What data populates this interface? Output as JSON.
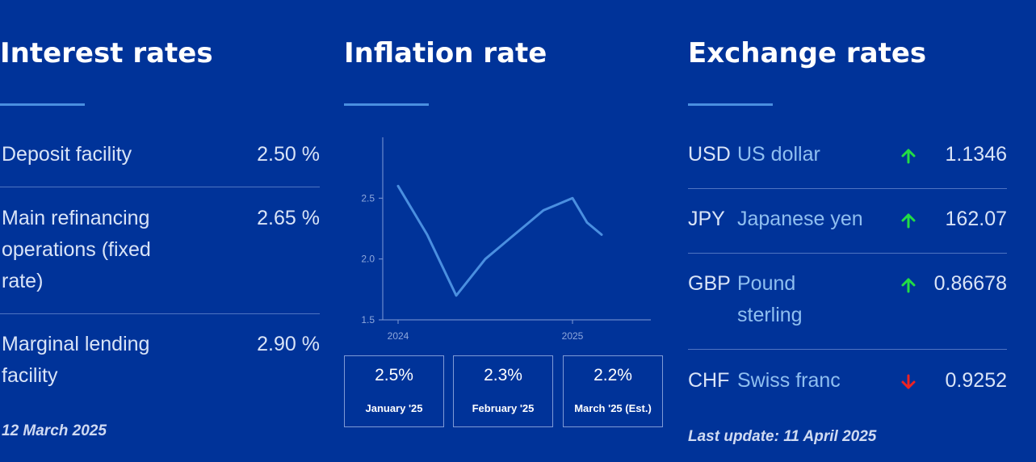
{
  "interest": {
    "title": "Interest rates",
    "rows": [
      {
        "name": "Deposit facility",
        "value": "2.50 %"
      },
      {
        "name": "Main refinancing operations (fixed rate)",
        "value": "2.65 %"
      },
      {
        "name": "Marginal lending facility",
        "value": "2.90 %"
      }
    ],
    "date": "12 March 2025"
  },
  "inflation": {
    "title": "Inflation rate",
    "boxes": [
      {
        "value": "2.5%",
        "label": "January '25"
      },
      {
        "value": "2.3%",
        "label": "February '25"
      },
      {
        "value": "2.2%",
        "label": "March '25 (Est.)"
      }
    ]
  },
  "exchange": {
    "title": "Exchange rates",
    "rows": [
      {
        "code": "USD",
        "name": "US dollar",
        "direction": "up",
        "value": "1.1346"
      },
      {
        "code": "JPY",
        "name": "Japanese yen",
        "direction": "up",
        "value": "162.07"
      },
      {
        "code": "GBP",
        "name": "Pound sterling",
        "direction": "up",
        "value": "0.86678"
      },
      {
        "code": "CHF",
        "name": "Swiss franc",
        "direction": "down",
        "value": "0.9252"
      }
    ],
    "last_update": "Last update: 11 April 2025"
  },
  "colors": {
    "background": "#003399",
    "accent": "#4a8fe0",
    "up": "#22dd44",
    "down": "#ee2222"
  },
  "chart_data": {
    "type": "line",
    "x": [
      "2024-01",
      "2024-02",
      "2024-03",
      "2024-04",
      "2024-05",
      "2024-06",
      "2024-07",
      "2024-08",
      "2024-09",
      "2024-10",
      "2024-11",
      "2024-12",
      "2025-01",
      "2025-02",
      "2025-03"
    ],
    "series": [
      {
        "values": [
          2.6,
          2.4,
          2.2,
          1.95,
          1.7,
          1.85,
          2.0,
          2.1,
          2.2,
          2.3,
          2.4,
          2.45,
          2.5,
          2.3,
          2.2
        ]
      }
    ],
    "x_tick_labels": [
      "2024",
      "2025"
    ],
    "y_ticks": [
      1.5,
      2.0,
      2.5
    ],
    "ylim": [
      1.5,
      3.0
    ],
    "grid": false,
    "line_color": "#4a8fe0"
  }
}
